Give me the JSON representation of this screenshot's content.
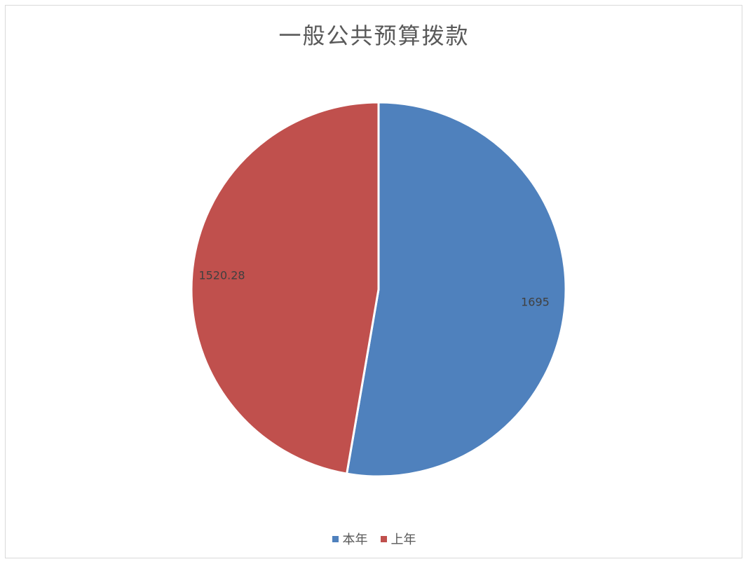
{
  "chart_data": {
    "type": "pie",
    "title": "一般公共预算拨款",
    "categories": [
      "本年",
      "上年"
    ],
    "values": [
      1695,
      1520.28
    ],
    "data_labels": [
      "1695",
      "1520.28"
    ],
    "colors": [
      "#4f81bd",
      "#c0504d"
    ],
    "legend_position": "bottom",
    "start_angle": "12-o'clock, clockwise"
  }
}
